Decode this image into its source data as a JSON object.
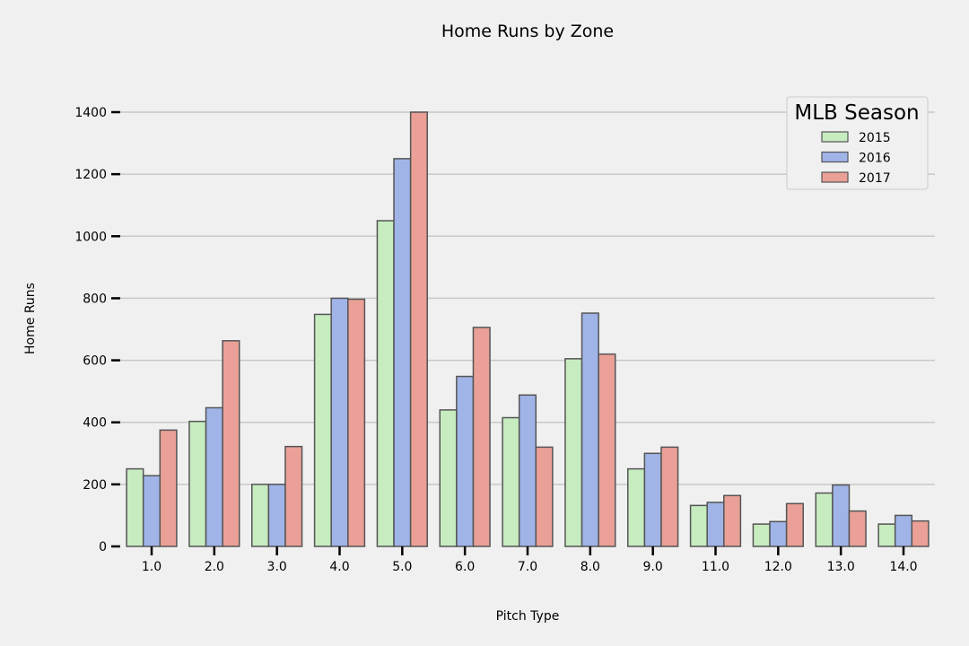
{
  "chart_data": {
    "type": "bar",
    "title": "Home Runs by Zone",
    "xlabel": "Pitch Type",
    "ylabel": "Home Runs",
    "categories": [
      "1.0",
      "2.0",
      "3.0",
      "4.0",
      "5.0",
      "6.0",
      "7.0",
      "8.0",
      "9.0",
      "11.0",
      "12.0",
      "13.0",
      "14.0"
    ],
    "series": [
      {
        "name": "2015",
        "color": "#c6ecc0",
        "values": [
          250,
          403,
          200,
          748,
          1050,
          440,
          415,
          605,
          250,
          132,
          72,
          172,
          72
        ]
      },
      {
        "name": "2016",
        "color": "#a0b4e8",
        "values": [
          228,
          447,
          200,
          800,
          1250,
          548,
          488,
          752,
          300,
          142,
          80,
          198,
          100
        ]
      },
      {
        "name": "2017",
        "color": "#eaa096",
        "values": [
          375,
          663,
          322,
          797,
          1400,
          706,
          320,
          620,
          320,
          164,
          138,
          114,
          82
        ]
      }
    ],
    "yticks": [
      0,
      200,
      400,
      600,
      800,
      1000,
      1200,
      1400
    ],
    "ylim": [
      0,
      1400
    ],
    "grid": true,
    "legend": {
      "title": "MLB Season",
      "position": "top-right"
    }
  }
}
